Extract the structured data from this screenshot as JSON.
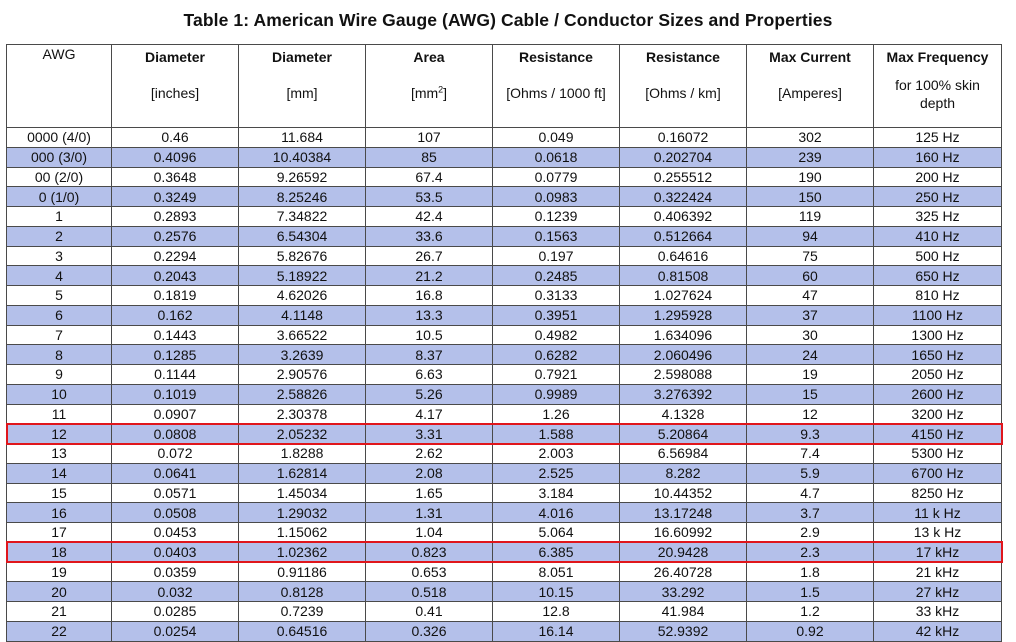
{
  "title": "Table 1: American Wire Gauge (AWG) Cable / Conductor Sizes and Properties",
  "headers": [
    {
      "name": "AWG",
      "unit": ""
    },
    {
      "name": "Diameter",
      "unit": "[inches]"
    },
    {
      "name": "Diameter",
      "unit": "[mm]"
    },
    {
      "name": "Area",
      "unit": "[mm",
      "unit_sup": "2",
      "unit_end": "]"
    },
    {
      "name": "Resistance",
      "unit": "[Ohms / 1000 ft]"
    },
    {
      "name": "Resistance",
      "unit": "[Ohms / km]"
    },
    {
      "name": "Max Current",
      "unit": "[Amperes]"
    },
    {
      "name": "Max Frequency",
      "unit": "for 100% skin depth"
    }
  ],
  "rows": [
    [
      "0000 (4/0)",
      "0.46",
      "11.684",
      "107",
      "0.049",
      "0.16072",
      "302",
      "125 Hz"
    ],
    [
      "000 (3/0)",
      "0.4096",
      "10.40384",
      "85",
      "0.0618",
      "0.202704",
      "239",
      "160 Hz"
    ],
    [
      "00 (2/0)",
      "0.3648",
      "9.26592",
      "67.4",
      "0.0779",
      "0.255512",
      "190",
      "200 Hz"
    ],
    [
      "0 (1/0)",
      "0.3249",
      "8.25246",
      "53.5",
      "0.0983",
      "0.322424",
      "150",
      "250 Hz"
    ],
    [
      "1",
      "0.2893",
      "7.34822",
      "42.4",
      "0.1239",
      "0.406392",
      "119",
      "325 Hz"
    ],
    [
      "2",
      "0.2576",
      "6.54304",
      "33.6",
      "0.1563",
      "0.512664",
      "94",
      "410 Hz"
    ],
    [
      "3",
      "0.2294",
      "5.82676",
      "26.7",
      "0.197",
      "0.64616",
      "75",
      "500 Hz"
    ],
    [
      "4",
      "0.2043",
      "5.18922",
      "21.2",
      "0.2485",
      "0.81508",
      "60",
      "650 Hz"
    ],
    [
      "5",
      "0.1819",
      "4.62026",
      "16.8",
      "0.3133",
      "1.027624",
      "47",
      "810 Hz"
    ],
    [
      "6",
      "0.162",
      "4.1148",
      "13.3",
      "0.3951",
      "1.295928",
      "37",
      "1100 Hz"
    ],
    [
      "7",
      "0.1443",
      "3.66522",
      "10.5",
      "0.4982",
      "1.634096",
      "30",
      "1300 Hz"
    ],
    [
      "8",
      "0.1285",
      "3.2639",
      "8.37",
      "0.6282",
      "2.060496",
      "24",
      "1650 Hz"
    ],
    [
      "9",
      "0.1144",
      "2.90576",
      "6.63",
      "0.7921",
      "2.598088",
      "19",
      "2050 Hz"
    ],
    [
      "10",
      "0.1019",
      "2.58826",
      "5.26",
      "0.9989",
      "3.276392",
      "15",
      "2600 Hz"
    ],
    [
      "11",
      "0.0907",
      "2.30378",
      "4.17",
      "1.26",
      "4.1328",
      "12",
      "3200 Hz"
    ],
    [
      "12",
      "0.0808",
      "2.05232",
      "3.31",
      "1.588",
      "5.20864",
      "9.3",
      "4150 Hz"
    ],
    [
      "13",
      "0.072",
      "1.8288",
      "2.62",
      "2.003",
      "6.56984",
      "7.4",
      "5300 Hz"
    ],
    [
      "14",
      "0.0641",
      "1.62814",
      "2.08",
      "2.525",
      "8.282",
      "5.9",
      "6700 Hz"
    ],
    [
      "15",
      "0.0571",
      "1.45034",
      "1.65",
      "3.184",
      "10.44352",
      "4.7",
      "8250 Hz"
    ],
    [
      "16",
      "0.0508",
      "1.29032",
      "1.31",
      "4.016",
      "13.17248",
      "3.7",
      "11 k Hz"
    ],
    [
      "17",
      "0.0453",
      "1.15062",
      "1.04",
      "5.064",
      "16.60992",
      "2.9",
      "13 k Hz"
    ],
    [
      "18",
      "0.0403",
      "1.02362",
      "0.823",
      "6.385",
      "20.9428",
      "2.3",
      "17 kHz"
    ],
    [
      "19",
      "0.0359",
      "0.91186",
      "0.653",
      "8.051",
      "26.40728",
      "1.8",
      "21 kHz"
    ],
    [
      "20",
      "0.032",
      "0.8128",
      "0.518",
      "10.15",
      "33.292",
      "1.5",
      "27 kHz"
    ],
    [
      "21",
      "0.0285",
      "0.7239",
      "0.41",
      "12.8",
      "41.984",
      "1.2",
      "33 kHz"
    ],
    [
      "22",
      "0.0254",
      "0.64516",
      "0.326",
      "16.14",
      "52.9392",
      "0.92",
      "42 kHz"
    ]
  ],
  "highlighted_awg": [
    "12",
    "18"
  ],
  "colors": {
    "row_alt": "#b4c0ea",
    "row_plain": "#ffffff",
    "highlight": "#e0161c",
    "grid": "#4a4a4a"
  }
}
